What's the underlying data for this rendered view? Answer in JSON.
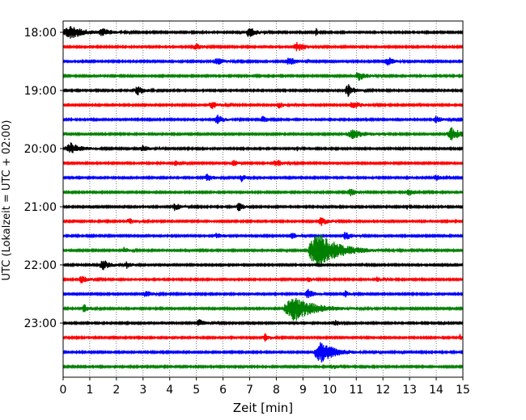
{
  "chart_data": {
    "type": "line",
    "title": "",
    "xlabel": "Zeit  [min]",
    "ylabel": "UTC (Lokalzeit = UTC + 02:00)",
    "xlim": [
      0,
      15
    ],
    "x_ticks": [
      0,
      1,
      2,
      3,
      4,
      5,
      6,
      7,
      8,
      9,
      10,
      11,
      12,
      13,
      14,
      15
    ],
    "x_tick_labels": [
      "0",
      "1",
      "2",
      "3",
      "4",
      "5",
      "6",
      "7",
      "8",
      "9",
      "10",
      "11",
      "12",
      "13",
      "14",
      "15"
    ],
    "y_tick_labels": [
      "18:00",
      "19:00",
      "20:00",
      "21:00",
      "22:00",
      "23:00"
    ],
    "y_tick_rows": [
      0,
      4,
      8,
      12,
      16,
      20
    ],
    "grid": "vertical dotted",
    "trace_minutes": 15,
    "colors_cycle": [
      "#000000",
      "#ff0000",
      "#0000ff",
      "#008000"
    ],
    "traces": [
      {
        "start": "18:00",
        "color": "#000000",
        "events": [
          [
            0.3,
            0.75,
            1.0
          ],
          [
            1.5,
            0.4,
            0.5
          ],
          [
            7.0,
            0.3,
            0.9
          ],
          [
            9.5,
            0.1,
            0.6
          ]
        ]
      },
      {
        "start": "18:15",
        "color": "#ff0000",
        "events": [
          [
            5.0,
            0.3,
            0.6
          ],
          [
            8.8,
            0.4,
            0.7
          ]
        ]
      },
      {
        "start": "18:30",
        "color": "#0000ff",
        "events": [
          [
            5.8,
            0.3,
            0.6
          ],
          [
            8.5,
            0.3,
            0.7
          ],
          [
            12.2,
            0.3,
            0.7
          ]
        ]
      },
      {
        "start": "18:45",
        "color": "#008000",
        "events": [
          [
            11.1,
            0.4,
            0.7
          ]
        ]
      },
      {
        "start": "19:00",
        "color": "#000000",
        "events": [
          [
            2.8,
            0.3,
            0.8
          ],
          [
            10.7,
            0.3,
            1.0
          ]
        ]
      },
      {
        "start": "19:15",
        "color": "#ff0000",
        "events": [
          [
            5.6,
            0.3,
            0.6
          ],
          [
            8.1,
            0.25,
            0.5
          ],
          [
            10.9,
            0.35,
            0.7
          ]
        ]
      },
      {
        "start": "19:30",
        "color": "#0000ff",
        "events": [
          [
            5.8,
            0.3,
            0.7
          ],
          [
            7.5,
            0.2,
            0.6
          ],
          [
            14.0,
            0.3,
            0.6
          ]
        ]
      },
      {
        "start": "19:45",
        "color": "#008000",
        "events": [
          [
            10.9,
            0.6,
            0.7
          ],
          [
            14.6,
            0.5,
            1.0
          ]
        ]
      },
      {
        "start": "20:00",
        "color": "#000000",
        "events": [
          [
            0.3,
            0.5,
            0.9
          ],
          [
            3.0,
            0.3,
            0.5
          ],
          [
            8.8,
            0.1,
            0.4
          ]
        ]
      },
      {
        "start": "20:15",
        "color": "#ff0000",
        "events": [
          [
            4.2,
            0.2,
            0.5
          ],
          [
            6.4,
            0.2,
            0.5
          ],
          [
            8.0,
            0.3,
            0.6
          ]
        ]
      },
      {
        "start": "20:30",
        "color": "#0000ff",
        "events": [
          [
            5.4,
            0.3,
            0.6
          ],
          [
            6.7,
            0.2,
            0.6
          ],
          [
            14.0,
            0.2,
            0.5
          ]
        ]
      },
      {
        "start": "20:45",
        "color": "#008000",
        "events": [
          [
            10.8,
            0.3,
            0.6
          ],
          [
            13.0,
            0.3,
            0.5
          ]
        ]
      },
      {
        "start": "21:00",
        "color": "#000000",
        "events": [
          [
            4.2,
            0.3,
            0.6
          ],
          [
            6.6,
            0.2,
            0.8
          ],
          [
            12.9,
            0.05,
            0.5
          ]
        ]
      },
      {
        "start": "21:15",
        "color": "#ff0000",
        "events": [
          [
            2.5,
            0.3,
            0.4
          ],
          [
            9.7,
            0.3,
            0.7
          ]
        ]
      },
      {
        "start": "21:30",
        "color": "#0000ff",
        "events": [
          [
            5.8,
            0.3,
            0.5
          ],
          [
            8.6,
            0.2,
            0.6
          ],
          [
            10.6,
            0.3,
            0.7
          ]
        ]
      },
      {
        "start": "21:45",
        "color": "#008000",
        "events": [
          [
            2.3,
            0.2,
            0.5
          ],
          [
            9.6,
            1.0,
            3.0
          ]
        ]
      },
      {
        "start": "22:00",
        "color": "#000000",
        "events": [
          [
            1.5,
            0.3,
            1.0
          ],
          [
            2.4,
            0.2,
            0.5
          ]
        ]
      },
      {
        "start": "22:15",
        "color": "#ff0000",
        "events": [
          [
            0.7,
            0.3,
            0.6
          ],
          [
            9.2,
            0.2,
            0.5
          ],
          [
            11.8,
            0.2,
            0.4
          ]
        ]
      },
      {
        "start": "22:30",
        "color": "#0000ff",
        "events": [
          [
            3.1,
            0.3,
            0.5
          ],
          [
            9.2,
            0.25,
            0.8
          ],
          [
            10.6,
            0.2,
            0.5
          ]
        ]
      },
      {
        "start": "22:45",
        "color": "#008000",
        "events": [
          [
            0.8,
            0.3,
            0.6
          ],
          [
            8.7,
            1.0,
            2.0
          ]
        ]
      },
      {
        "start": "23:00",
        "color": "#000000",
        "events": [
          [
            5.1,
            0.3,
            0.6
          ],
          [
            10.2,
            0.2,
            0.6
          ]
        ]
      },
      {
        "start": "23:15",
        "color": "#ff0000",
        "events": [
          [
            7.6,
            0.25,
            0.6
          ],
          [
            14.9,
            0.1,
            0.5
          ]
        ]
      },
      {
        "start": "23:30",
        "color": "#0000ff",
        "events": [
          [
            9.7,
            0.7,
            1.7
          ]
        ]
      },
      {
        "start": "23:45",
        "color": "#008000",
        "events": [
          [
            10.2,
            0.2,
            0.3
          ]
        ]
      }
    ]
  }
}
